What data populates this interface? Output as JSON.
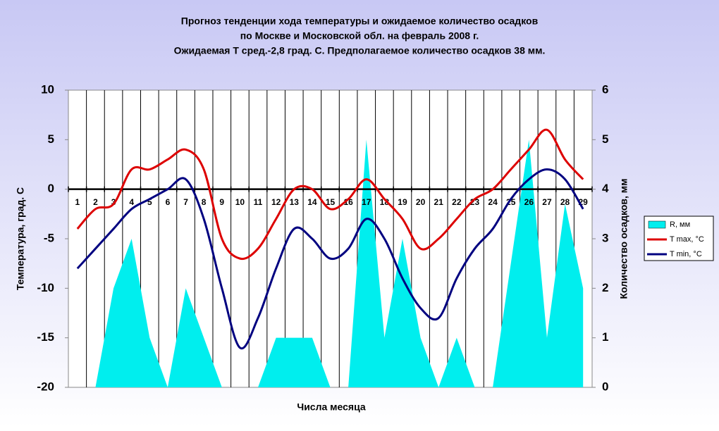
{
  "chart_data": {
    "type": "combo",
    "title": [
      "Прогноз тенденции хода температуры и ожидаемое количество осадков",
      "по Москве и Московской обл. на февраль 2008 г.",
      "Ожидаемая Т сред.-2,8 град. С. Предполагаемое количество осадков 38 мм."
    ],
    "x_label": "Числа месяца",
    "y_label": "Температура, град. С",
    "y2_label": "Количество осадков, мм",
    "categories": [
      "1",
      "2",
      "3",
      "4",
      "5",
      "6",
      "7",
      "8",
      "9",
      "10",
      "11",
      "12",
      "13",
      "14",
      "15",
      "16",
      "17",
      "18",
      "19",
      "20",
      "21",
      "22",
      "23",
      "24",
      "25",
      "26",
      "27",
      "28",
      "29"
    ],
    "ylim": [
      -20,
      10
    ],
    "yticks": [
      10,
      5,
      0,
      -5,
      -10,
      -15,
      -20
    ],
    "y2lim": [
      0,
      6
    ],
    "y2ticks": [
      6,
      5,
      4,
      3,
      2,
      1,
      0
    ],
    "grid": "x",
    "legend": "right",
    "series": [
      {
        "name": "R, мм",
        "type": "area",
        "axis": "y2",
        "color": "#00eeee",
        "values": [
          0,
          0,
          2,
          3,
          1,
          0,
          2,
          1,
          0,
          0,
          0,
          1,
          1,
          1,
          0,
          0,
          5,
          1,
          3,
          1,
          0,
          1,
          0,
          0,
          2.5,
          5,
          1,
          3.7,
          2
        ]
      },
      {
        "name": "T max, °C",
        "type": "line",
        "color": "#dd0000",
        "values": [
          -4,
          -2,
          -1.5,
          2,
          2,
          3,
          4,
          2,
          -5,
          -7,
          -6,
          -3,
          0,
          0,
          -2,
          -1,
          1,
          -1,
          -3,
          -6,
          -5,
          -3,
          -1,
          0,
          2,
          4,
          6,
          3,
          1
        ]
      },
      {
        "name": "T min, °C",
        "type": "line",
        "color": "#000080",
        "values": [
          -8,
          -6,
          -4,
          -2,
          -1,
          0,
          1,
          -3,
          -10,
          -16,
          -13,
          -8,
          -4,
          -5,
          -7,
          -6,
          -3,
          -5,
          -9,
          -12,
          -13,
          -9,
          -6,
          -4,
          -1,
          1,
          2,
          1,
          -2
        ]
      }
    ]
  }
}
